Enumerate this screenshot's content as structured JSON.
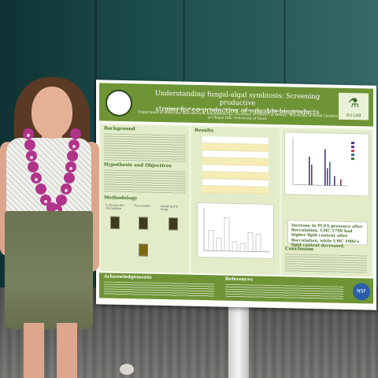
{
  "poster": {
    "title_line1": "Understanding fungal-algal symbiosis: Screening productive",
    "title_line2": "strains for co-production of valuable bioproducts",
    "authors": "Abigail Roby¹, Kyla Mei A. Tumon¹, Yu Wang², Lauren Higa¹, Ty Shitanaka¹, Zhi-Yan Du¹",
    "affiliations": "¹Department of Molecular Biosciences & Bioengineering, University of Hawai'i at Mānoa; ²University of North Carolina at Chapel Hill; ³University of Guam",
    "lab_logo": "DU LAB",
    "sections": {
      "background": "Background",
      "hypothesis": "Hypothesis and Objectives",
      "methodology": "Methodology",
      "results": "Results",
      "conclusion": "Conclusion",
      "acknowledgements": "Acknowledgements",
      "references": "References"
    },
    "method_steps": [
      "Culturing the microalgae",
      "Flocculation",
      "Growing the fungi"
    ],
    "callout": "Increase in PUFA presence after flocculation. UHC 1799 had higher lipid content after flocculation, while UHC 1986's lipid content decreased.",
    "funder_logo": "NSF"
  },
  "colors": {
    "poster_green": "#6f9436",
    "poster_light": "#eef3df",
    "wall": "#1b4a4b"
  }
}
